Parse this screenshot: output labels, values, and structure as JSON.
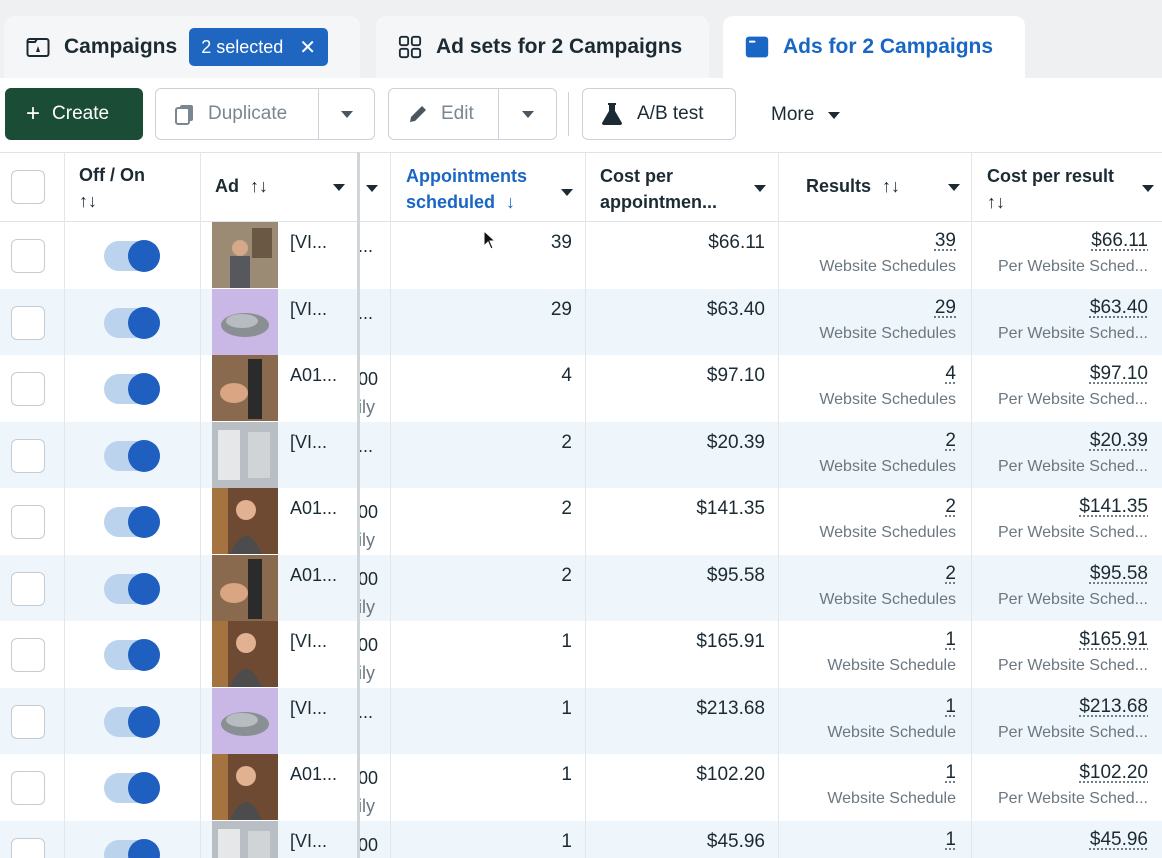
{
  "tabs": {
    "campaigns": {
      "label": "Campaigns",
      "selected_chip": "2 selected"
    },
    "adsets": {
      "label": "Ad sets for 2 Campaigns"
    },
    "ads": {
      "label": "Ads for 2 Campaigns"
    }
  },
  "toolbar": {
    "create": "Create",
    "duplicate": "Duplicate",
    "edit": "Edit",
    "ab_test": "A/B test",
    "more": "More"
  },
  "columns": {
    "offon": "Off / On",
    "ad": "Ad",
    "appointments_line1": "Appointments",
    "appointments_line2": "scheduled",
    "cost_appt_line1": "Cost per",
    "cost_appt_line2": "appointmen...",
    "results": "Results",
    "cost_result": "Cost per result"
  },
  "colors": {
    "accent": "#1a66c4",
    "create_bg": "#1b4d36",
    "toggle_knob": "#1f5fbf"
  },
  "rows": [
    {
      "ad": "[VI...",
      "clip": "...",
      "clip_sub": "",
      "appointments": "39",
      "cost_per_appt": "$66.11",
      "results": "39",
      "results_label": "Website Schedules",
      "cost_per_result": "$66.11",
      "cpr_label": "Per Website Sched..."
    },
    {
      "ad": "[VI...",
      "clip": "...",
      "clip_sub": "",
      "appointments": "29",
      "cost_per_appt": "$63.40",
      "results": "29",
      "results_label": "Website Schedules",
      "cost_per_result": "$63.40",
      "cpr_label": "Per Website Sched..."
    },
    {
      "ad": "A01...",
      "clip": "00",
      "clip_sub": "ily",
      "appointments": "4",
      "cost_per_appt": "$97.10",
      "results": "4",
      "results_label": "Website Schedules",
      "cost_per_result": "$97.10",
      "cpr_label": "Per Website Sched..."
    },
    {
      "ad": "[VI...",
      "clip": "...",
      "clip_sub": "",
      "appointments": "2",
      "cost_per_appt": "$20.39",
      "results": "2",
      "results_label": "Website Schedules",
      "cost_per_result": "$20.39",
      "cpr_label": "Per Website Sched..."
    },
    {
      "ad": "A01...",
      "clip": "00",
      "clip_sub": "ily",
      "appointments": "2",
      "cost_per_appt": "$141.35",
      "results": "2",
      "results_label": "Website Schedules",
      "cost_per_result": "$141.35",
      "cpr_label": "Per Website Sched..."
    },
    {
      "ad": "A01...",
      "clip": "00",
      "clip_sub": "ily",
      "appointments": "2",
      "cost_per_appt": "$95.58",
      "results": "2",
      "results_label": "Website Schedules",
      "cost_per_result": "$95.58",
      "cpr_label": "Per Website Sched..."
    },
    {
      "ad": "[VI...",
      "clip": "00",
      "clip_sub": "ily",
      "appointments": "1",
      "cost_per_appt": "$165.91",
      "results": "1",
      "results_label": "Website Schedule",
      "cost_per_result": "$165.91",
      "cpr_label": "Per Website Sched..."
    },
    {
      "ad": "[VI...",
      "clip": "...",
      "clip_sub": "",
      "appointments": "1",
      "cost_per_appt": "$213.68",
      "results": "1",
      "results_label": "Website Schedule",
      "cost_per_result": "$213.68",
      "cpr_label": "Per Website Sched..."
    },
    {
      "ad": "A01...",
      "clip": "00",
      "clip_sub": "ily",
      "appointments": "1",
      "cost_per_appt": "$102.20",
      "results": "1",
      "results_label": "Website Schedule",
      "cost_per_result": "$102.20",
      "cpr_label": "Per Website Sched..."
    },
    {
      "ad": "[VI...",
      "clip": "00",
      "clip_sub": "",
      "appointments": "1",
      "cost_per_appt": "$45.96",
      "results": "1",
      "results_label": "",
      "cost_per_result": "$45.96",
      "cpr_label": ""
    }
  ]
}
